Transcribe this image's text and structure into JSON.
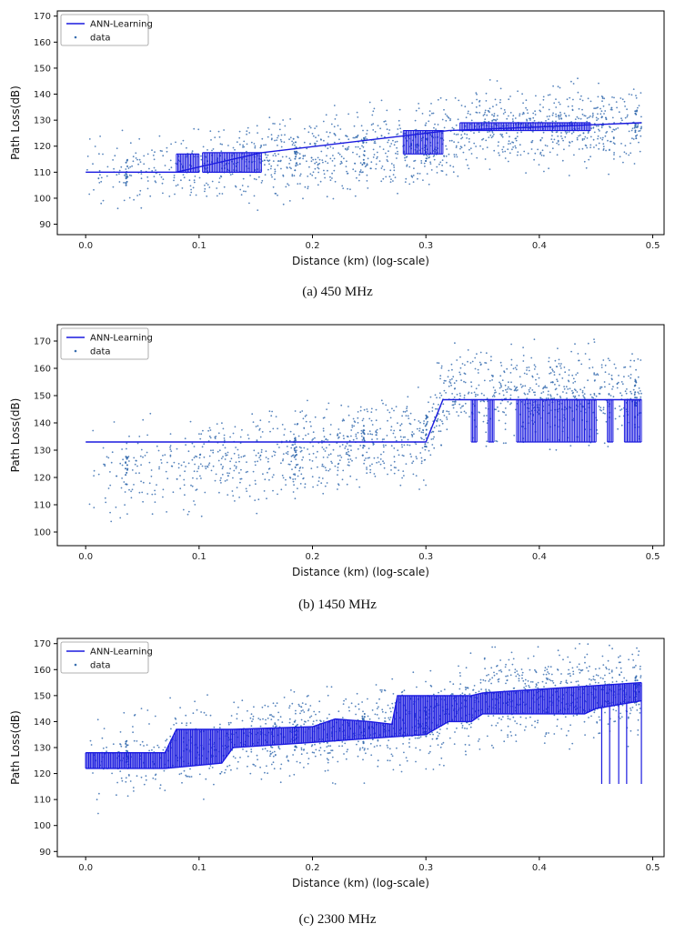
{
  "chart_data": [
    {
      "type": "scatter",
      "caption": "(a)  450 MHz",
      "xlabel": "Distance (km) (log-scale)",
      "ylabel": "Path Loss(dB)",
      "xlim": [
        -0.025,
        0.51
      ],
      "ylim": [
        86,
        172
      ],
      "xticks": [
        "0.0",
        "0.1",
        "0.2",
        "0.3",
        "0.4",
        "0.5"
      ],
      "xtick_values": [
        0.0,
        0.1,
        0.2,
        0.3,
        0.4,
        0.5
      ],
      "yticks": [
        "90",
        "100",
        "110",
        "120",
        "130",
        "140",
        "150",
        "160",
        "170"
      ],
      "ytick_values": [
        90,
        100,
        110,
        120,
        130,
        140,
        150,
        160,
        170
      ],
      "legend": [
        "ANN-Learning",
        "data"
      ],
      "legend_position": "top-left",
      "colors": {
        "line": "#1a1adf",
        "data": "#3a6fb0"
      },
      "data_trend": [
        [
          0.0,
          110
        ],
        [
          0.1,
          112
        ],
        [
          0.2,
          117
        ],
        [
          0.3,
          120
        ],
        [
          0.35,
          128
        ],
        [
          0.49,
          128
        ]
      ],
      "data_spread": 9,
      "series": [
        {
          "name": "ANN-Learning",
          "steps": [
            [
              0.0,
              110
            ],
            [
              0.08,
              110
            ],
            [
              0.155,
              117.5
            ],
            [
              0.32,
              126
            ],
            [
              0.49,
              129
            ]
          ],
          "bands": [
            [
              0.08,
              0.1,
              110,
              117
            ],
            [
              0.103,
              0.155,
              110,
              117.5
            ],
            [
              0.28,
              0.315,
              117,
              126
            ],
            [
              0.33,
              0.445,
              126,
              129
            ]
          ]
        }
      ]
    },
    {
      "type": "scatter",
      "caption": "(b)  1450 MHz",
      "xlabel": "Distance (km) (log-scale)",
      "ylabel": "Path Loss(dB)",
      "xlim": [
        -0.025,
        0.51
      ],
      "ylim": [
        95,
        176
      ],
      "xticks": [
        "0.0",
        "0.1",
        "0.2",
        "0.3",
        "0.4",
        "0.5"
      ],
      "xtick_values": [
        0.0,
        0.1,
        0.2,
        0.3,
        0.4,
        0.5
      ],
      "yticks": [
        "100",
        "110",
        "120",
        "130",
        "140",
        "150",
        "160",
        "170"
      ],
      "ytick_values": [
        100,
        110,
        120,
        130,
        140,
        150,
        160,
        170
      ],
      "legend": [
        "ANN-Learning",
        "data"
      ],
      "legend_position": "top-left",
      "colors": {
        "line": "#1a1adf",
        "data": "#3a6fb0"
      },
      "data_trend": [
        [
          0.0,
          120
        ],
        [
          0.1,
          125
        ],
        [
          0.2,
          130
        ],
        [
          0.3,
          137
        ],
        [
          0.32,
          150
        ],
        [
          0.49,
          150
        ]
      ],
      "data_spread": 10,
      "series": [
        {
          "name": "ANN-Learning",
          "steps": [
            [
              0.0,
              133
            ],
            [
              0.3,
              133
            ],
            [
              0.315,
              148.5
            ],
            [
              0.49,
              148.5
            ]
          ],
          "bands": [
            [
              0.34,
              0.345,
              133,
              148.5
            ],
            [
              0.355,
              0.36,
              133,
              148.5
            ],
            [
              0.38,
              0.45,
              133,
              148.5
            ],
            [
              0.46,
              0.465,
              133,
              148.5
            ],
            [
              0.475,
              0.49,
              133,
              148.5
            ]
          ]
        }
      ]
    },
    {
      "type": "scatter",
      "caption": "(c)  2300 MHz",
      "xlabel": "Distance (km) (log-scale)",
      "ylabel": "Path Loss(dB)",
      "xlim": [
        -0.025,
        0.51
      ],
      "ylim": [
        88,
        172
      ],
      "xticks": [
        "0.0",
        "0.1",
        "0.2",
        "0.3",
        "0.4",
        "0.5"
      ],
      "xtick_values": [
        0.0,
        0.1,
        0.2,
        0.3,
        0.4,
        0.5
      ],
      "yticks": [
        "90",
        "100",
        "110",
        "120",
        "130",
        "140",
        "150",
        "160",
        "170"
      ],
      "ytick_values": [
        90,
        100,
        110,
        120,
        130,
        140,
        150,
        160,
        170
      ],
      "legend": [
        "ANN-Learning",
        "data"
      ],
      "legend_position": "top-left",
      "colors": {
        "line": "#1a1adf",
        "data": "#3a6fb0"
      },
      "data_trend": [
        [
          0.0,
          125
        ],
        [
          0.1,
          130
        ],
        [
          0.2,
          135
        ],
        [
          0.3,
          140
        ],
        [
          0.35,
          150
        ],
        [
          0.49,
          152
        ]
      ],
      "data_spread": 10,
      "series": [
        {
          "name": "ANN-Learning",
          "upper": [
            [
              0.0,
              128
            ],
            [
              0.07,
              128
            ],
            [
              0.08,
              137
            ],
            [
              0.13,
              137
            ],
            [
              0.2,
              138
            ],
            [
              0.22,
              141
            ],
            [
              0.25,
              140
            ],
            [
              0.27,
              139
            ],
            [
              0.275,
              150
            ],
            [
              0.34,
              150
            ],
            [
              0.35,
              151
            ],
            [
              0.49,
              155
            ]
          ],
          "lower": [
            [
              0.0,
              122
            ],
            [
              0.07,
              122
            ],
            [
              0.12,
              124
            ],
            [
              0.13,
              130
            ],
            [
              0.2,
              132
            ],
            [
              0.3,
              135
            ],
            [
              0.32,
              140
            ],
            [
              0.34,
              140
            ],
            [
              0.35,
              143
            ],
            [
              0.44,
              143
            ],
            [
              0.45,
              145
            ],
            [
              0.49,
              148
            ]
          ],
          "spikes": [
            [
              0.455,
              116
            ],
            [
              0.462,
              116
            ],
            [
              0.47,
              116
            ],
            [
              0.477,
              116
            ],
            [
              0.49,
              116
            ]
          ]
        }
      ]
    }
  ]
}
